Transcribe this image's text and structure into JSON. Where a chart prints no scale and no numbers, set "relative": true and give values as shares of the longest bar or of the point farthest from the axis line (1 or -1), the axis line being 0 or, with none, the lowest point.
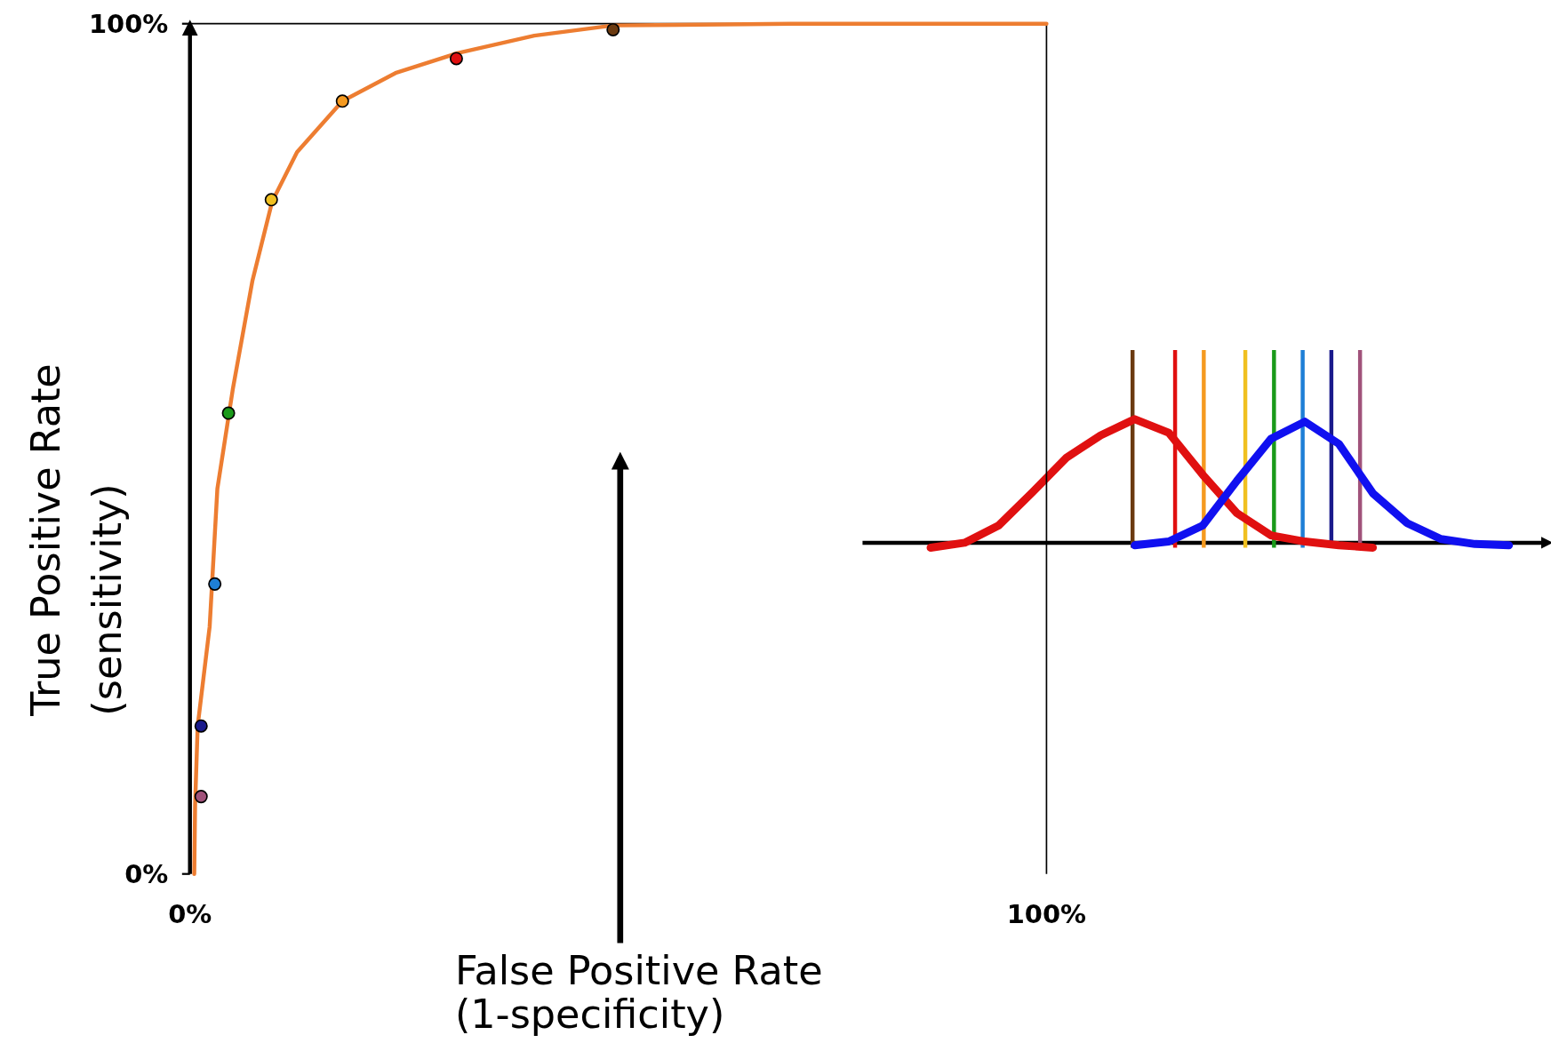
{
  "chart_data": [
    {
      "type": "line",
      "xlabel": "False Positive Rate\n(1-specificity)",
      "ylabel": "True Positive Rate\n(sensitivity)",
      "xlim": [
        0,
        100
      ],
      "ylim": [
        0,
        100
      ],
      "xticks": [
        {
          "value": 0,
          "label": "0%"
        },
        {
          "value": 100,
          "label": "100%"
        }
      ],
      "yticks": [
        {
          "value": 0,
          "label": "0%"
        },
        {
          "value": 100,
          "label": "100%"
        }
      ],
      "series": [
        {
          "color": "#ed7d31",
          "marker": "none",
          "x": [
            0.5,
            0.6,
            0.9,
            2.3,
            3.2,
            5.0,
            7.3,
            9.6,
            12.5,
            17.8,
            24.0,
            31.1,
            40.2,
            49.4,
            70.2,
            100
          ],
          "values": [
            0,
            8.1,
            17.4,
            29.1,
            45.3,
            57.0,
            69.8,
            79.1,
            84.9,
            90.9,
            94.2,
            96.5,
            98.6,
            99.8,
            100,
            100
          ]
        },
        {
          "type": "scatter",
          "marker": "circle",
          "x": [
            1.3,
            1.3,
            2.9,
            4.5,
            9.5,
            17.8,
            31.1,
            49.4
          ],
          "values": [
            9.1,
            17.4,
            34.1,
            54.2,
            79.3,
            90.9,
            95.9,
            99.3
          ],
          "colors": [
            "#a0527a",
            "#1a1a8c",
            "#1e7fd6",
            "#1a9a1a",
            "#f0c020",
            "#f59a20",
            "#e01010",
            "#6b3a10"
          ]
        }
      ]
    },
    {
      "type": "line",
      "relative": true,
      "categories": [
        null,
        null,
        null,
        null,
        null,
        null,
        null,
        null,
        null,
        null,
        null,
        null,
        null,
        null,
        null,
        null,
        null,
        null
      ],
      "series": [
        {
          "color": "#e01010",
          "values": [
            -0.04,
            0.0,
            0.14,
            0.41,
            0.69,
            0.87,
            1,
            0.89,
            0.55,
            0.24,
            0.06,
            0.01,
            -0.02,
            -0.04,
            null,
            null,
            null,
            null
          ]
        },
        {
          "color": "#1010f0",
          "values": [
            null,
            null,
            null,
            null,
            null,
            null,
            -0.02,
            0.01,
            0.14,
            0.5,
            0.84,
            0.98,
            0.8,
            0.4,
            0.16,
            0.03,
            -0.01,
            -0.02
          ]
        }
      ]
    }
  ]
}
